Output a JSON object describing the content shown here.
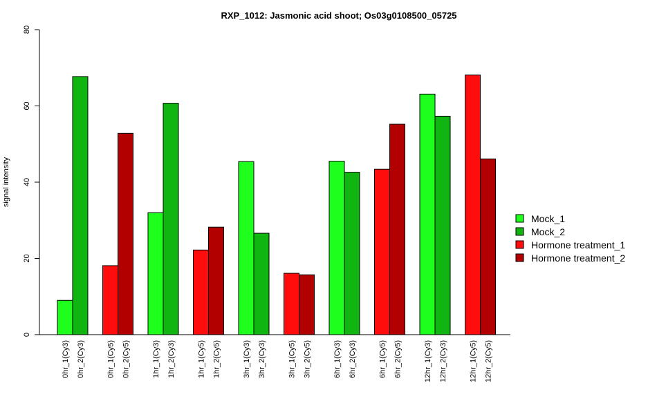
{
  "chart_data": {
    "type": "bar",
    "title": "RXP_1012: Jasmonic acid shoot; Os03g0108500_05725",
    "xlabel": "",
    "ylabel": "signal intensity",
    "ylim": [
      0,
      80
    ],
    "yticks": [
      0,
      20,
      40,
      60,
      80
    ],
    "grid": false,
    "legend_position": "right",
    "categories": [
      "0hr_1(Cy3)",
      "0hr_2(Cy3)",
      "0hr_1(Cy5)",
      "0hr_2(Cy5)",
      "1hr_1(Cy3)",
      "1hr_2(Cy3)",
      "1hr_1(Cy5)",
      "1hr_2(Cy5)",
      "3hr_1(Cy3)",
      "3hr_2(Cy3)",
      "3hr_1(Cy5)",
      "3hr_2(Cy5)",
      "6hr_1(Cy3)",
      "6hr_2(Cy3)",
      "6hr_1(Cy5)",
      "6hr_2(Cy5)",
      "12hr_1(Cy3)",
      "12hr_2(Cy3)",
      "12hr_1(Cy5)",
      "12hr_2(Cy5)"
    ],
    "values": [
      9,
      67.7,
      18.1,
      52.8,
      32,
      60.7,
      22.2,
      28.2,
      45.4,
      26.6,
      16.1,
      15.7,
      45.5,
      42.6,
      43.4,
      55.2,
      63.1,
      57.3,
      68.1,
      46.1
    ],
    "bar_series": [
      0,
      1,
      2,
      3,
      0,
      1,
      2,
      3,
      0,
      1,
      2,
      3,
      0,
      1,
      2,
      3,
      0,
      1,
      2,
      3
    ],
    "series": [
      {
        "name": "Mock_1",
        "color": "#1eff1e"
      },
      {
        "name": "Mock_2",
        "color": "#11b511"
      },
      {
        "name": "Hormone treatment_1",
        "color": "#ff0d0d"
      },
      {
        "name": "Hormone treatment_2",
        "color": "#b20000"
      }
    ]
  }
}
